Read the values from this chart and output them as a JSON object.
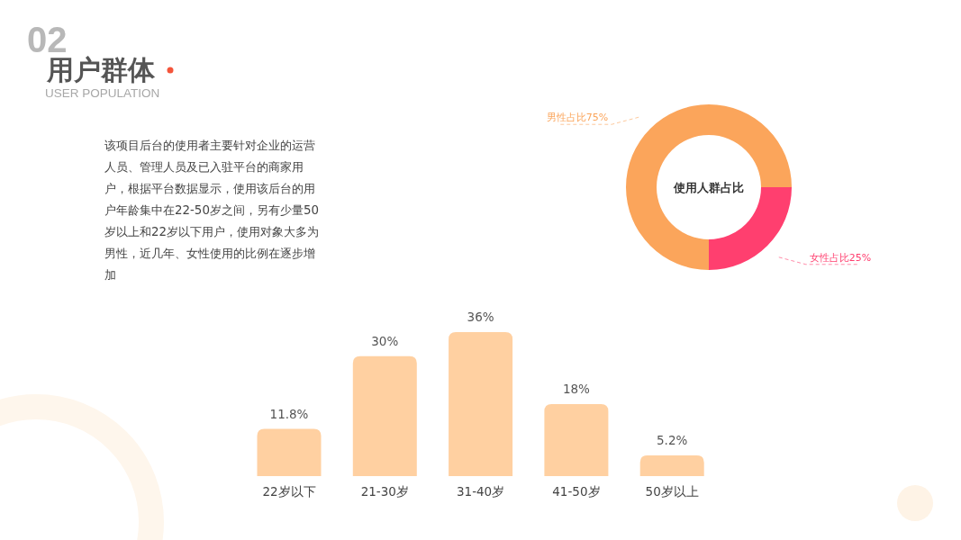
{
  "chart_data": [
    {
      "type": "other",
      "title": "用户群体",
      "subtitle": "USER POPULATION",
      "annotations": [
        "02",
        "该项目后台的使用者主要针对企业的运营人员、管理人员及已入驻平台的商家用户，根据平台数据显示，使用该后台的用户年龄集中在22-50岁之间，另有少量50岁以上和22岁以下用户，使用对象大多为男性，近几年、女性使用的比例在逐步增加"
      ]
    },
    {
      "type": "donut",
      "categories": [
        "男性占比75%",
        "女性占比25%"
      ],
      "values": [
        75,
        25
      ],
      "colors": [
        "#fba55b",
        "#ff3f6f"
      ],
      "annotations": [
        "使用人群占比"
      ]
    },
    {
      "type": "bar",
      "categories": [
        "22岁以下",
        "21-30岁",
        "31-40岁",
        "41-50岁",
        "50岁以上"
      ],
      "values": [
        11.8,
        30,
        36,
        18,
        5.2
      ],
      "value_labels": [
        "11.8%",
        "30%",
        "36%",
        "18%",
        "5.2%"
      ],
      "color": "#ffd0a1"
    }
  ]
}
